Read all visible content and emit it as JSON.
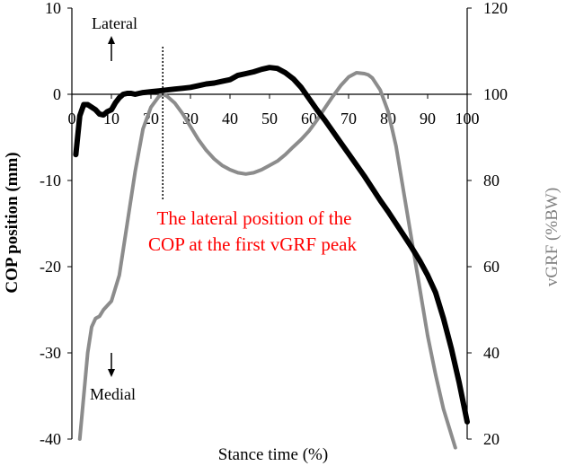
{
  "chart_data": {
    "type": "line",
    "xlabel": "Stance time (%)",
    "ylabel_left": "COP position (mm)",
    "ylabel_right": "vGRF (%BW)",
    "xlim": [
      0,
      100
    ],
    "ylim_left": [
      -40,
      10
    ],
    "ylim_right": [
      20,
      120
    ],
    "x_ticks": [
      0,
      10,
      20,
      30,
      40,
      50,
      60,
      70,
      80,
      90,
      100
    ],
    "y_ticks_left": [
      10,
      0,
      -10,
      -20,
      -30,
      -40
    ],
    "y_ticks_right": [
      120,
      100,
      80,
      60,
      40,
      20
    ],
    "grid": false,
    "series": [
      {
        "axis": "left",
        "color": "#000000",
        "x": [
          1,
          2,
          3,
          4,
          5,
          6,
          7,
          8,
          9,
          10,
          11,
          12,
          13,
          14,
          15,
          16,
          17,
          18,
          20,
          22,
          24,
          26,
          28,
          30,
          32,
          34,
          36,
          38,
          40,
          42,
          44,
          46,
          48,
          50,
          52,
          54,
          56,
          58,
          60,
          62,
          64,
          66,
          68,
          70,
          72,
          74,
          76,
          78,
          80,
          82,
          84,
          86,
          88,
          90,
          92,
          94,
          96,
          98,
          100
        ],
        "y": [
          -7,
          -2.5,
          -1.2,
          -1.2,
          -1.5,
          -1.8,
          -2.3,
          -2.4,
          -2,
          -1.8,
          -1,
          -0.4,
          0,
          0.1,
          0.1,
          0,
          0.1,
          0.2,
          0.3,
          0.4,
          0.5,
          0.6,
          0.7,
          0.8,
          1.0,
          1.2,
          1.3,
          1.5,
          1.7,
          2.2,
          2.4,
          2.6,
          2.9,
          3.1,
          3.0,
          2.5,
          1.8,
          0.8,
          -0.5,
          -1.8,
          -3.0,
          -4.3,
          -5.6,
          -6.9,
          -8.2,
          -9.5,
          -10.9,
          -12.3,
          -13.6,
          -15,
          -16.4,
          -17.8,
          -19.3,
          -21,
          -23,
          -26,
          -29.5,
          -33.5,
          -38
        ]
      },
      {
        "axis": "right",
        "color": "#8c8c8c",
        "x": [
          2,
          3,
          4,
          5,
          6,
          7,
          8,
          10,
          12,
          14,
          16,
          18,
          20,
          22,
          23,
          24,
          26,
          28,
          30,
          32,
          34,
          36,
          38,
          40,
          42,
          44,
          46,
          48,
          50,
          52,
          54,
          56,
          58,
          60,
          62,
          64,
          66,
          68,
          70,
          72,
          74,
          75,
          76,
          78,
          80,
          82,
          84,
          86,
          88,
          90,
          92,
          94,
          96,
          97
        ],
        "y": [
          20,
          30,
          40,
          46,
          48,
          48.5,
          50,
          52,
          58,
          70,
          82,
          92,
          97,
          99.5,
          100,
          99.6,
          98,
          95.5,
          92.5,
          89.5,
          87,
          85,
          83.5,
          82.5,
          81.8,
          81.5,
          81.8,
          82.5,
          83.5,
          84.5,
          86,
          87.8,
          89.5,
          91.5,
          94,
          96.8,
          99.5,
          102,
          104,
          105,
          104.8,
          104.5,
          103.8,
          101,
          96,
          88,
          77,
          66,
          55,
          44,
          35,
          27,
          21,
          18
        ]
      }
    ],
    "annotation": {
      "text_line1": "The lateral position of the",
      "text_line2": "COP at the first vGRF peak",
      "color": "#ff0000",
      "marker_x": 23
    },
    "direction_labels": {
      "up": "Lateral",
      "down": "Medial"
    }
  }
}
